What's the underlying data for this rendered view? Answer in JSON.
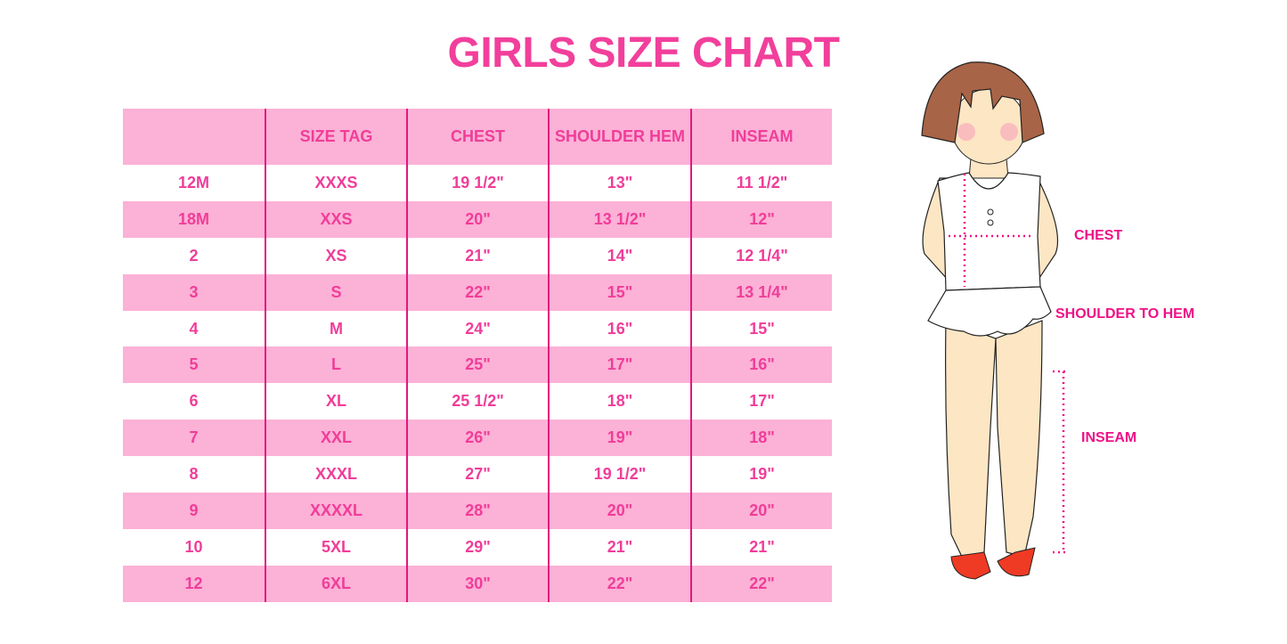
{
  "title": "GIRLS SIZE CHART",
  "table": {
    "headers": [
      "",
      "SIZE TAG",
      "CHEST",
      "SHOULDER HEM",
      "INSEAM"
    ],
    "rows": [
      [
        "12M",
        "XXXS",
        "19 1/2\"",
        "13\"",
        "11 1/2\""
      ],
      [
        "18M",
        "XXS",
        "20\"",
        "13 1/2\"",
        "12\""
      ],
      [
        "2",
        "XS",
        "21\"",
        "14\"",
        "12 1/4\""
      ],
      [
        "3",
        "S",
        "22\"",
        "15\"",
        "13 1/4\""
      ],
      [
        "4",
        "M",
        "24\"",
        "16\"",
        "15\""
      ],
      [
        "5",
        "L",
        "25\"",
        "17\"",
        "16\""
      ],
      [
        "6",
        "XL",
        "25 1/2\"",
        "18\"",
        "17\""
      ],
      [
        "7",
        "XXL",
        "26\"",
        "19\"",
        "18\""
      ],
      [
        "8",
        "XXXL",
        "27\"",
        "19 1/2\"",
        "19\""
      ],
      [
        "9",
        "XXXXL",
        "28\"",
        "20\"",
        "20\""
      ],
      [
        "10",
        "5XL",
        "29\"",
        "21\"",
        "21\""
      ],
      [
        "12",
        "6XL",
        "30\"",
        "22\"",
        "22\""
      ]
    ]
  },
  "figure": {
    "labels": {
      "chest": "CHEST",
      "shoulder": "SHOULDER TO HEM",
      "inseam": "INSEAM"
    }
  },
  "colors": {
    "accent": "#f23f9b",
    "row_pink": "#fcb1d6",
    "divider": "#e3177f",
    "measure": "#ee1187"
  }
}
